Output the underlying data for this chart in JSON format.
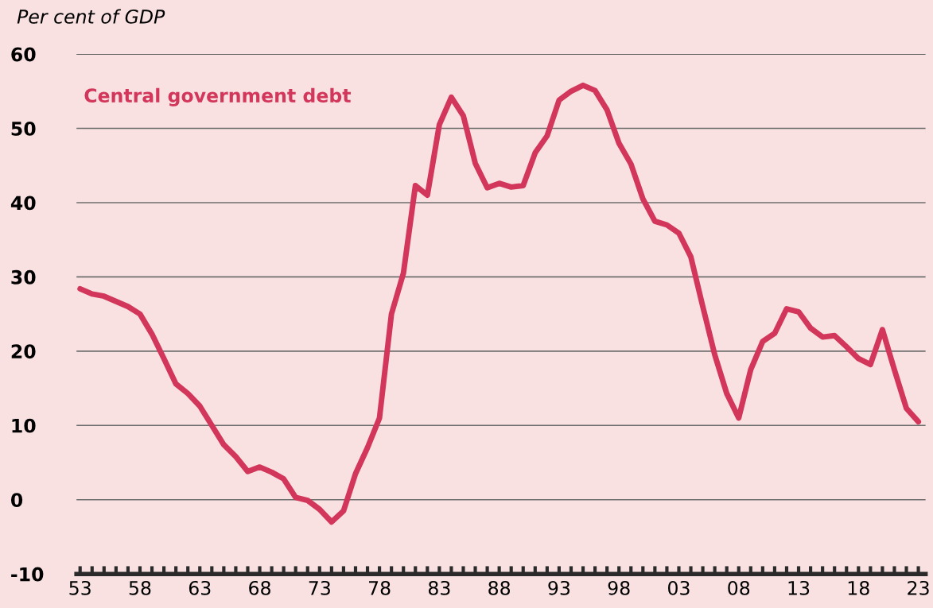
{
  "chart_data": {
    "type": "line",
    "ylabel": "Per cent of GDP",
    "x": [
      1953,
      1954,
      1955,
      1956,
      1957,
      1958,
      1959,
      1960,
      1961,
      1962,
      1963,
      1964,
      1965,
      1966,
      1967,
      1968,
      1969,
      1970,
      1971,
      1972,
      1973,
      1974,
      1975,
      1976,
      1977,
      1978,
      1979,
      1980,
      1981,
      1982,
      1983,
      1984,
      1985,
      1986,
      1987,
      1988,
      1989,
      1990,
      1991,
      1992,
      1993,
      1994,
      1995,
      1996,
      1997,
      1998,
      1999,
      2000,
      2001,
      2002,
      2003,
      2004,
      2005,
      2006,
      2007,
      2008,
      2009,
      2010,
      2011,
      2012,
      2013,
      2014,
      2015,
      2016,
      2017,
      2018,
      2019,
      2020,
      2021,
      2022,
      2023
    ],
    "series": [
      {
        "name": "Central government debt",
        "color": "#d2365a",
        "values": [
          28.4,
          27.7,
          27.4,
          26.7,
          26.0,
          25.0,
          22.3,
          19.0,
          15.6,
          14.3,
          12.6,
          10.0,
          7.4,
          5.8,
          3.8,
          4.4,
          3.7,
          2.8,
          0.3,
          -0.1,
          -1.3,
          -3.0,
          -1.5,
          3.5,
          7.0,
          11.0,
          25.0,
          30.5,
          42.3,
          41.0,
          50.5,
          54.2,
          51.7,
          45.3,
          42.0,
          42.6,
          42.1,
          42.3,
          46.7,
          49.0,
          53.8,
          55.0,
          55.8,
          55.1,
          52.5,
          48.0,
          45.2,
          40.5,
          37.5,
          37.0,
          35.9,
          32.7,
          26.0,
          19.5,
          14.3,
          11.0,
          17.5,
          21.3,
          22.4,
          25.7,
          25.3,
          23.1,
          21.9,
          22.1,
          20.6,
          19.0,
          18.2,
          22.9,
          17.5,
          12.3,
          10.5
        ]
      }
    ],
    "xlim": [
      1952.7,
      2023.6
    ],
    "xticks": [
      {
        "value": 1953,
        "label": "53"
      },
      {
        "value": 1954,
        "label": null
      },
      {
        "value": 1955,
        "label": null
      },
      {
        "value": 1956,
        "label": null
      },
      {
        "value": 1957,
        "label": null
      },
      {
        "value": 1958,
        "label": "58"
      },
      {
        "value": 1959,
        "label": null
      },
      {
        "value": 1960,
        "label": null
      },
      {
        "value": 1961,
        "label": null
      },
      {
        "value": 1962,
        "label": null
      },
      {
        "value": 1963,
        "label": "63"
      },
      {
        "value": 1964,
        "label": null
      },
      {
        "value": 1965,
        "label": null
      },
      {
        "value": 1966,
        "label": null
      },
      {
        "value": 1967,
        "label": null
      },
      {
        "value": 1968,
        "label": "68"
      },
      {
        "value": 1969,
        "label": null
      },
      {
        "value": 1970,
        "label": null
      },
      {
        "value": 1971,
        "label": null
      },
      {
        "value": 1972,
        "label": null
      },
      {
        "value": 1973,
        "label": "73"
      },
      {
        "value": 1974,
        "label": null
      },
      {
        "value": 1975,
        "label": null
      },
      {
        "value": 1976,
        "label": null
      },
      {
        "value": 1977,
        "label": null
      },
      {
        "value": 1978,
        "label": "78"
      },
      {
        "value": 1979,
        "label": null
      },
      {
        "value": 1980,
        "label": null
      },
      {
        "value": 1981,
        "label": null
      },
      {
        "value": 1982,
        "label": null
      },
      {
        "value": 1983,
        "label": "83"
      },
      {
        "value": 1984,
        "label": null
      },
      {
        "value": 1985,
        "label": null
      },
      {
        "value": 1986,
        "label": null
      },
      {
        "value": 1987,
        "label": null
      },
      {
        "value": 1988,
        "label": "88"
      },
      {
        "value": 1989,
        "label": null
      },
      {
        "value": 1990,
        "label": null
      },
      {
        "value": 1991,
        "label": null
      },
      {
        "value": 1992,
        "label": null
      },
      {
        "value": 1993,
        "label": "93"
      },
      {
        "value": 1994,
        "label": null
      },
      {
        "value": 1995,
        "label": null
      },
      {
        "value": 1996,
        "label": null
      },
      {
        "value": 1997,
        "label": null
      },
      {
        "value": 1998,
        "label": "98"
      },
      {
        "value": 1999,
        "label": null
      },
      {
        "value": 2000,
        "label": null
      },
      {
        "value": 2001,
        "label": null
      },
      {
        "value": 2002,
        "label": null
      },
      {
        "value": 2003,
        "label": "03"
      },
      {
        "value": 2004,
        "label": null
      },
      {
        "value": 2005,
        "label": null
      },
      {
        "value": 2006,
        "label": null
      },
      {
        "value": 2007,
        "label": null
      },
      {
        "value": 2008,
        "label": "08"
      },
      {
        "value": 2009,
        "label": null
      },
      {
        "value": 2010,
        "label": null
      },
      {
        "value": 2011,
        "label": null
      },
      {
        "value": 2012,
        "label": null
      },
      {
        "value": 2013,
        "label": "13"
      },
      {
        "value": 2014,
        "label": null
      },
      {
        "value": 2015,
        "label": null
      },
      {
        "value": 2016,
        "label": null
      },
      {
        "value": 2017,
        "label": null
      },
      {
        "value": 2018,
        "label": "18"
      },
      {
        "value": 2019,
        "label": null
      },
      {
        "value": 2020,
        "label": null
      },
      {
        "value": 2021,
        "label": null
      },
      {
        "value": 2022,
        "label": null
      },
      {
        "value": 2023,
        "label": "23"
      }
    ],
    "ylim": [
      -10,
      60
    ],
    "yticks": [
      -10,
      0,
      10,
      20,
      30,
      40,
      50,
      60
    ],
    "grid": "y",
    "legend": false,
    "marker": "none",
    "line_style": "solid"
  }
}
